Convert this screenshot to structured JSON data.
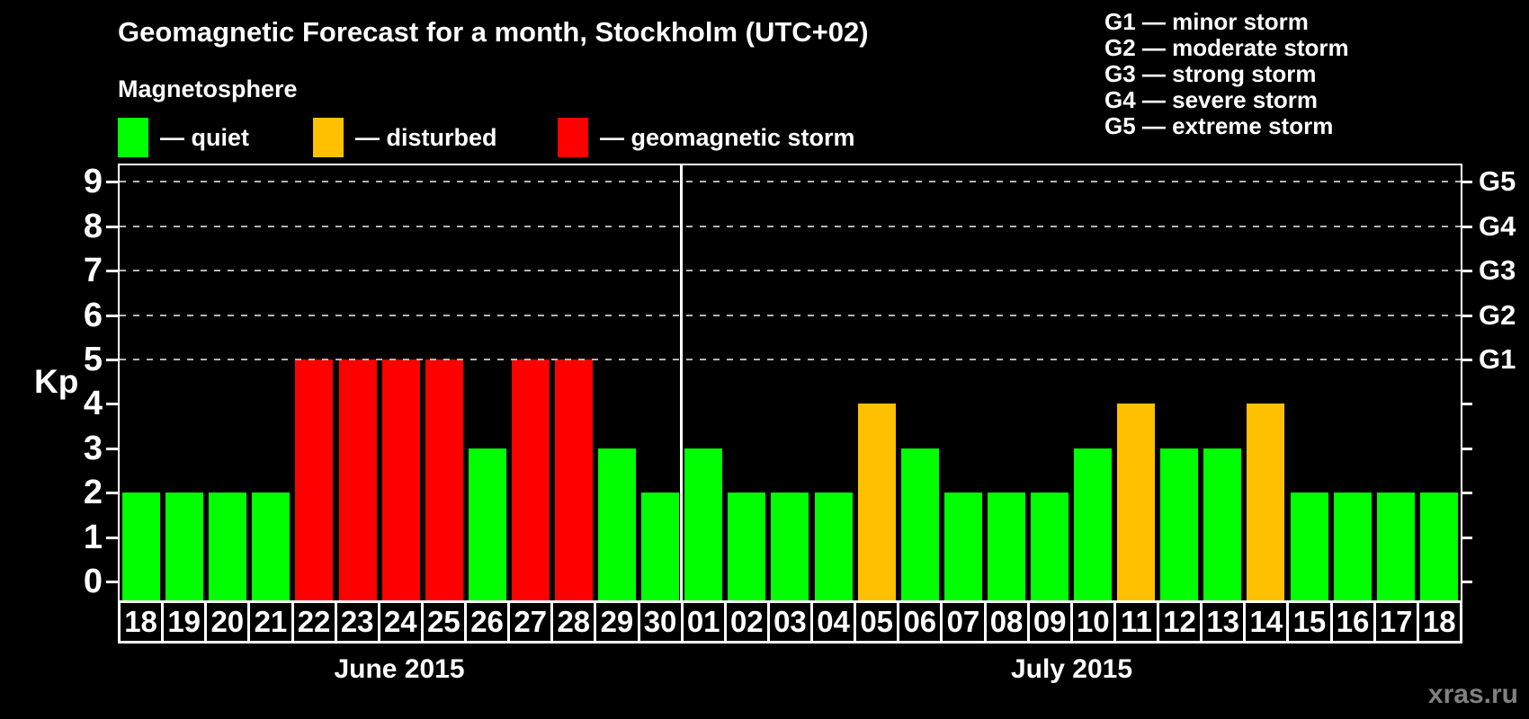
{
  "title": "Geomagnetic Forecast for a month, Stockholm (UTC+02)",
  "magnetosphere": {
    "heading": "Magnetosphere",
    "items": [
      {
        "key": "quiet",
        "label": "— quiet",
        "color": "#00ff00"
      },
      {
        "key": "disturbed",
        "label": "— disturbed",
        "color": "#ffc000"
      },
      {
        "key": "storm",
        "label": "— geomagnetic storm",
        "color": "#ff0000"
      }
    ]
  },
  "storm_scale": [
    {
      "label": "G1 — minor storm"
    },
    {
      "label": "G2 — moderate storm"
    },
    {
      "label": "G3 — strong storm"
    },
    {
      "label": "G4 — severe storm"
    },
    {
      "label": "G5 — extreme storm"
    }
  ],
  "watermark": "xras.ru",
  "colors": {
    "quiet": "#00ff00",
    "disturbed": "#ffc000",
    "storm": "#ff0000",
    "background": "#000000",
    "text": "#ffffff",
    "grid": "#b4b4b4",
    "watermark": "#808080"
  },
  "chart_data": {
    "type": "bar",
    "ylabel": "Kp",
    "ylim": [
      0,
      9
    ],
    "yticks": [
      0,
      1,
      2,
      3,
      4,
      5,
      6,
      7,
      8,
      9
    ],
    "gridlines_at_kp": [
      5,
      6,
      7,
      8,
      9
    ],
    "grid": "dashed",
    "legend_position": "top",
    "right_axis": [
      {
        "kp": 5,
        "label": "G1"
      },
      {
        "kp": 6,
        "label": "G2"
      },
      {
        "kp": 7,
        "label": "G3"
      },
      {
        "kp": 8,
        "label": "G4"
      },
      {
        "kp": 9,
        "label": "G5"
      }
    ],
    "months": [
      {
        "label": "June 2015",
        "days": 13
      },
      {
        "label": "July 2015",
        "days": 18
      }
    ],
    "bars": [
      {
        "month": "June",
        "day": "18",
        "kp": 2,
        "level": "quiet"
      },
      {
        "month": "June",
        "day": "19",
        "kp": 2,
        "level": "quiet"
      },
      {
        "month": "June",
        "day": "20",
        "kp": 2,
        "level": "quiet"
      },
      {
        "month": "June",
        "day": "21",
        "kp": 2,
        "level": "quiet"
      },
      {
        "month": "June",
        "day": "22",
        "kp": 5,
        "level": "storm"
      },
      {
        "month": "June",
        "day": "23",
        "kp": 5,
        "level": "storm"
      },
      {
        "month": "June",
        "day": "24",
        "kp": 5,
        "level": "storm"
      },
      {
        "month": "June",
        "day": "25",
        "kp": 5,
        "level": "storm"
      },
      {
        "month": "June",
        "day": "26",
        "kp": 3,
        "level": "quiet"
      },
      {
        "month": "June",
        "day": "27",
        "kp": 5,
        "level": "storm"
      },
      {
        "month": "June",
        "day": "28",
        "kp": 5,
        "level": "storm"
      },
      {
        "month": "June",
        "day": "29",
        "kp": 3,
        "level": "quiet"
      },
      {
        "month": "June",
        "day": "30",
        "kp": 2,
        "level": "quiet"
      },
      {
        "month": "July",
        "day": "01",
        "kp": 3,
        "level": "quiet"
      },
      {
        "month": "July",
        "day": "02",
        "kp": 2,
        "level": "quiet"
      },
      {
        "month": "July",
        "day": "03",
        "kp": 2,
        "level": "quiet"
      },
      {
        "month": "July",
        "day": "04",
        "kp": 2,
        "level": "quiet"
      },
      {
        "month": "July",
        "day": "05",
        "kp": 4,
        "level": "disturbed"
      },
      {
        "month": "July",
        "day": "06",
        "kp": 3,
        "level": "quiet"
      },
      {
        "month": "July",
        "day": "07",
        "kp": 2,
        "level": "quiet"
      },
      {
        "month": "July",
        "day": "08",
        "kp": 2,
        "level": "quiet"
      },
      {
        "month": "July",
        "day": "09",
        "kp": 2,
        "level": "quiet"
      },
      {
        "month": "July",
        "day": "10",
        "kp": 3,
        "level": "quiet"
      },
      {
        "month": "July",
        "day": "11",
        "kp": 4,
        "level": "disturbed"
      },
      {
        "month": "July",
        "day": "12",
        "kp": 3,
        "level": "quiet"
      },
      {
        "month": "July",
        "day": "13",
        "kp": 3,
        "level": "quiet"
      },
      {
        "month": "July",
        "day": "14",
        "kp": 4,
        "level": "disturbed"
      },
      {
        "month": "July",
        "day": "15",
        "kp": 2,
        "level": "quiet"
      },
      {
        "month": "July",
        "day": "16",
        "kp": 2,
        "level": "quiet"
      },
      {
        "month": "July",
        "day": "17",
        "kp": 2,
        "level": "quiet"
      },
      {
        "month": "July",
        "day": "18",
        "kp": 2,
        "level": "quiet"
      }
    ]
  }
}
